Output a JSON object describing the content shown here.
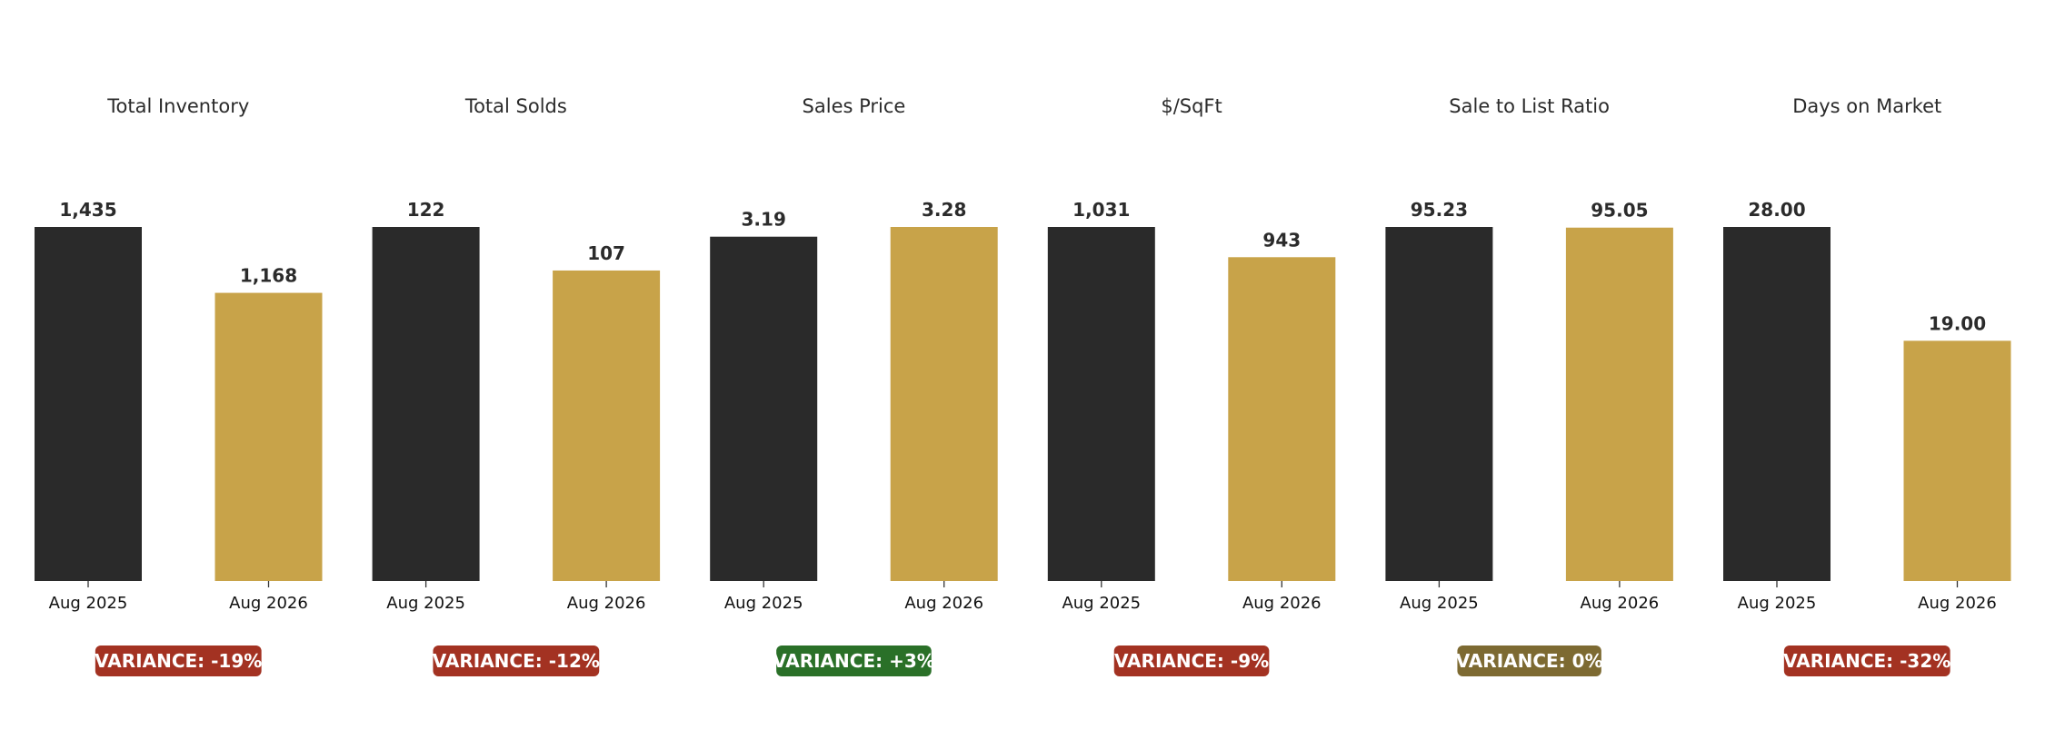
{
  "colors": {
    "previous": "#2a2a2a",
    "current": "#c8a349",
    "text": "#2b2b2b",
    "variance_negative": "#a33222",
    "variance_positive": "#2a7028",
    "variance_neutral": "#7d6a32",
    "badge_text": "#ffffff"
  },
  "chart_data": [
    {
      "type": "bar",
      "title": "Total Inventory",
      "categories": [
        "Aug 2025",
        "Aug 2026"
      ],
      "values": [
        1435,
        1168
      ],
      "value_labels": [
        "1,435",
        "1,168"
      ],
      "variance": {
        "label": "VARIANCE: -19%",
        "tone": "negative"
      }
    },
    {
      "type": "bar",
      "title": "Total Solds",
      "categories": [
        "Aug 2025",
        "Aug 2026"
      ],
      "values": [
        122,
        107
      ],
      "value_labels": [
        "122",
        "107"
      ],
      "variance": {
        "label": "VARIANCE: -12%",
        "tone": "negative"
      }
    },
    {
      "type": "bar",
      "title": "Sales Price",
      "categories": [
        "Aug 2025",
        "Aug 2026"
      ],
      "values": [
        3.19,
        3.28
      ],
      "value_labels": [
        "3.19",
        "3.28"
      ],
      "variance": {
        "label": "VARIANCE: +3%",
        "tone": "positive"
      }
    },
    {
      "type": "bar",
      "title": "$/SqFt",
      "categories": [
        "Aug 2025",
        "Aug 2026"
      ],
      "values": [
        1031,
        943
      ],
      "value_labels": [
        "1,031",
        "943"
      ],
      "variance": {
        "label": "VARIANCE: -9%",
        "tone": "negative"
      }
    },
    {
      "type": "bar",
      "title": "Sale to List Ratio",
      "categories": [
        "Aug 2025",
        "Aug 2026"
      ],
      "values": [
        95.23,
        95.05
      ],
      "value_labels": [
        "95.23",
        "95.05"
      ],
      "variance": {
        "label": "VARIANCE: 0%",
        "tone": "neutral"
      }
    },
    {
      "type": "bar",
      "title": "Days on Market",
      "categories": [
        "Aug 2025",
        "Aug 2026"
      ],
      "values": [
        28.0,
        19.0
      ],
      "value_labels": [
        "28.00",
        "19.00"
      ],
      "variance": {
        "label": "VARIANCE: -32%",
        "tone": "negative"
      }
    }
  ]
}
